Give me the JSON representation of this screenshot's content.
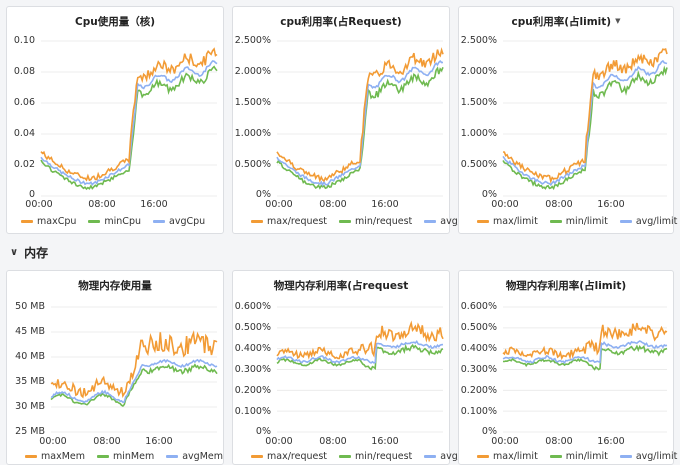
{
  "section": {
    "label": "内存",
    "chevron": "chevron-down-icon"
  },
  "colors": {
    "max": "#f29b35",
    "min": "#6fba50",
    "avg": "#8eb0f2",
    "grid": "#ececec"
  },
  "xticks": [
    "00:00",
    "08:00",
    "16:00"
  ],
  "panels": [
    {
      "id": "cpu-cores",
      "title": "Cpu使用量（核)",
      "yticks": [
        "0.10",
        "0.08",
        "0.06",
        "0.04",
        "0.02",
        "0"
      ],
      "legend": [
        "maxCpu",
        "minCpu",
        "avgCpu"
      ],
      "dropdown": false,
      "chart_data": {
        "type": "line",
        "ylim": [
          0,
          0.1
        ],
        "series": [
          "max",
          "min",
          "avg"
        ]
      }
    },
    {
      "id": "cpu-request",
      "title": "cpu利用率(占Request)",
      "yticks": [
        "2.500%",
        "2.000%",
        "1.500%",
        "1.000%",
        "0.500%",
        "0%"
      ],
      "legend": [
        "max/request",
        "min/request",
        "avg/request"
      ],
      "dropdown": false,
      "chart_data": {
        "type": "line",
        "ylim": [
          0,
          2.5
        ],
        "series": [
          "max",
          "min",
          "avg"
        ]
      }
    },
    {
      "id": "cpu-limit",
      "title": "cpu利用率(占limit)",
      "yticks": [
        "2.500%",
        "2.000%",
        "1.500%",
        "1.000%",
        "0.500%",
        "0%"
      ],
      "legend": [
        "max/limit",
        "min/limit",
        "avg/limit"
      ],
      "dropdown": true,
      "chart_data": {
        "type": "line",
        "ylim": [
          0,
          2.5
        ],
        "series": [
          "max",
          "min",
          "avg"
        ]
      }
    },
    {
      "id": "mem-bytes",
      "title": "物理内存使用量",
      "yticks": [
        "50 MB",
        "45 MB",
        "40 MB",
        "35 MB",
        "30 MB",
        "25 MB"
      ],
      "legend": [
        "maxMem",
        "minMem",
        "avgMem"
      ],
      "dropdown": false,
      "chart_data": {
        "type": "line",
        "ylim": [
          25,
          50
        ],
        "series": [
          "max",
          "min",
          "avg"
        ]
      }
    },
    {
      "id": "mem-request",
      "title": "物理内存利用率(占request",
      "yticks": [
        "0.600%",
        "0.500%",
        "0.400%",
        "0.300%",
        "0.200%",
        "0.100%",
        "0%"
      ],
      "legend": [
        "max/request",
        "min/request",
        "avg/request"
      ],
      "dropdown": false,
      "chart_data": {
        "type": "line",
        "ylim": [
          0,
          0.6
        ],
        "series": [
          "max",
          "min",
          "avg"
        ]
      }
    },
    {
      "id": "mem-limit",
      "title": "物理内存利用率(占limit)",
      "yticks": [
        "0.600%",
        "0.500%",
        "0.400%",
        "0.300%",
        "0.200%",
        "0.100%",
        "0%"
      ],
      "legend": [
        "max/limit",
        "min/limit",
        "avg/limit"
      ],
      "dropdown": false,
      "chart_data": {
        "type": "line",
        "ylim": [
          0,
          0.6
        ],
        "series": [
          "max",
          "min",
          "avg"
        ]
      }
    }
  ]
}
